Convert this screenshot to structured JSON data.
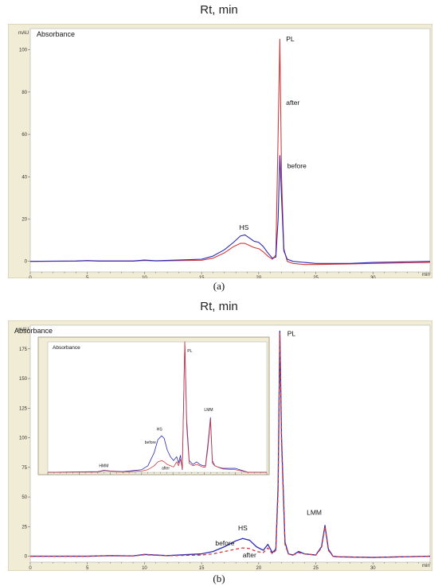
{
  "figure": {
    "title_a": "Rt, min",
    "title_b": "Rt, min",
    "caption_a": "(a)",
    "caption_b": "(b)"
  },
  "colors": {
    "before": "#2a2ab5",
    "after": "#d23a3a",
    "frame_bg": "#f0ecd6",
    "plot_bg": "#ffffff"
  },
  "chart_data": [
    {
      "type": "line",
      "panel": "a",
      "title": "Absorbance",
      "xlabel": "min",
      "ylabel": "mAU",
      "xlim": [
        0,
        35
      ],
      "ylim": [
        -5,
        110
      ],
      "xticks": [
        0,
        5,
        10,
        15,
        20,
        25,
        30
      ],
      "yticks": [
        0,
        20,
        40,
        60,
        80,
        100
      ],
      "grid": false,
      "series": [
        {
          "name": "before",
          "color": "#2a2ab5",
          "x": [
            0,
            4,
            5,
            6,
            9,
            10,
            11,
            15,
            16,
            17,
            17.8,
            18.4,
            18.8,
            19.2,
            19.6,
            20.0,
            20.4,
            20.8,
            21.2,
            21.5,
            21.7,
            21.85,
            22.0,
            22.2,
            22.5,
            23,
            24,
            25,
            28,
            30,
            35
          ],
          "y": [
            0,
            0.2,
            0.4,
            0.2,
            0.2,
            0.6,
            0.3,
            1,
            2.5,
            5.5,
            9,
            12,
            12.5,
            11,
            9.5,
            9,
            7,
            4,
            1.5,
            2,
            20,
            50,
            30,
            5,
            1,
            0,
            -0.5,
            -1,
            -1,
            -0.5,
            0
          ]
        },
        {
          "name": "after",
          "color": "#d23a3a",
          "x": [
            0,
            4,
            5,
            6,
            9,
            10,
            11,
            15,
            16,
            17,
            17.8,
            18.4,
            18.8,
            19.2,
            19.6,
            20.0,
            20.4,
            20.8,
            21.2,
            21.5,
            21.7,
            21.85,
            22.0,
            22.2,
            22.5,
            23,
            24,
            25,
            28,
            30,
            35
          ],
          "y": [
            0,
            0.1,
            0.3,
            0.1,
            0.1,
            0.4,
            0.2,
            0.5,
            1.5,
            4,
            7,
            8.5,
            8.5,
            7.5,
            6.5,
            6,
            4.5,
            2.5,
            1,
            3,
            60,
            105,
            40,
            6,
            0,
            -1,
            -1.5,
            -1.5,
            -1.2,
            -1,
            -0.5
          ]
        }
      ],
      "annotations": [
        {
          "text": "PL",
          "x": 22.4,
          "y": 104
        },
        {
          "text": "after",
          "x": 22.4,
          "y": 74
        },
        {
          "text": "before",
          "x": 22.5,
          "y": 44
        },
        {
          "text": "HS",
          "x": 18.3,
          "y": 15
        }
      ]
    },
    {
      "type": "line",
      "panel": "b",
      "title": "Absorbance",
      "xlabel": "min",
      "ylabel": "mAU",
      "xlim": [
        0,
        35
      ],
      "ylim": [
        -5,
        195
      ],
      "xticks": [
        0,
        5,
        10,
        15,
        20,
        25,
        30
      ],
      "yticks": [
        0,
        25,
        50,
        75,
        100,
        125,
        150,
        175
      ],
      "grid": false,
      "series": [
        {
          "name": "before",
          "color": "#2a2ab5",
          "x": [
            0,
            5,
            7,
            9,
            10,
            12,
            15,
            16,
            17,
            18,
            18.6,
            19.2,
            19.8,
            20.4,
            20.8,
            21.2,
            21.5,
            21.7,
            21.85,
            22.0,
            22.3,
            22.6,
            23,
            23.5,
            24,
            25,
            25.5,
            25.8,
            26.1,
            26.5,
            27,
            30,
            35
          ],
          "y": [
            0,
            0,
            0.5,
            0.3,
            1.5,
            0.5,
            2,
            4,
            8,
            13,
            15,
            13.5,
            8,
            5,
            10,
            3,
            6,
            60,
            190,
            100,
            12,
            2,
            1,
            4,
            2,
            1,
            8,
            26,
            6,
            0,
            -0.5,
            -1,
            0
          ]
        },
        {
          "name": "after",
          "color": "#d23a3a",
          "x": [
            0,
            5,
            7,
            9,
            10,
            12,
            15,
            16,
            17,
            18,
            18.6,
            19.2,
            19.8,
            20.4,
            20.8,
            21.2,
            21.5,
            21.7,
            21.85,
            22.0,
            22.3,
            22.6,
            23,
            23.5,
            24,
            25,
            25.5,
            25.8,
            26.1,
            26.5,
            27,
            30,
            35
          ],
          "y": [
            0,
            0,
            0.4,
            0.2,
            1.2,
            0.4,
            1,
            2,
            4,
            6,
            7,
            6.5,
            4,
            3,
            7,
            2,
            5,
            55,
            188,
            95,
            10,
            2,
            1,
            3,
            2,
            1,
            7,
            25,
            5,
            0,
            -0.5,
            -1,
            0
          ]
        }
      ],
      "annotations": [
        {
          "text": "PL",
          "x": 22.5,
          "y": 186
        },
        {
          "text": "HS",
          "x": 18.2,
          "y": 22
        },
        {
          "text": "LMM",
          "x": 24.2,
          "y": 35
        },
        {
          "text": "before",
          "x": 16.2,
          "y": 9
        },
        {
          "text": "after",
          "x": 18.6,
          "y": -1
        }
      ],
      "inset": {
        "title": "Absorbance",
        "xlim": [
          0,
          35
        ],
        "ylim": [
          0,
          100
        ],
        "series": [
          {
            "name": "before",
            "color": "#2a2ab5",
            "x": [
              0,
              8,
              9,
              10,
              12,
              15,
              16,
              17,
              17.6,
              18.2,
              18.6,
              19.1,
              19.6,
              20.1,
              20.6,
              20.9,
              21.2,
              21.5,
              21.9,
              22.2,
              22.6,
              23.2,
              23.8,
              24.3,
              24.8,
              25.2,
              25.6,
              26.0,
              26.3,
              26.7,
              27.2,
              28,
              30,
              32,
              35
            ],
            "y": [
              0,
              0.5,
              1.5,
              1,
              0.5,
              2,
              5,
              15,
              25,
              28,
              26,
              17,
              12,
              9,
              12,
              7,
              13,
              2,
              100,
              40,
              9,
              6,
              8,
              6,
              5,
              5,
              22,
              42,
              9,
              5,
              4,
              3,
              3,
              0,
              0
            ]
          },
          {
            "name": "after",
            "color": "#d23a3a",
            "x": [
              0,
              8,
              9,
              10,
              12,
              15,
              16,
              17,
              17.6,
              18.2,
              18.6,
              19.1,
              19.6,
              20.1,
              20.6,
              20.9,
              21.2,
              21.5,
              21.9,
              22.2,
              22.6,
              23.2,
              23.8,
              24.3,
              24.8,
              25.2,
              25.6,
              26.0,
              26.3,
              26.7,
              27.2,
              28,
              30,
              32,
              35
            ],
            "y": [
              0,
              0.3,
              1.2,
              0.8,
              0.3,
              1,
              2,
              5,
              8,
              9,
              8,
              6,
              5,
              4,
              8,
              5,
              10,
              3,
              100,
              35,
              7,
              5,
              6,
              5,
              4,
              4,
              19,
              40,
              7,
              5,
              4,
              2.5,
              2,
              0,
              0
            ]
          }
        ],
        "annotations": [
          {
            "text": "HMM",
            "x": 8.2,
            "y": 4
          },
          {
            "text": "HS",
            "x": 17.4,
            "y": 32
          },
          {
            "text": "before",
            "x": 15.5,
            "y": 22
          },
          {
            "text": "after",
            "x": 18.2,
            "y": 2
          },
          {
            "text": "PL",
            "x": 22.3,
            "y": 92
          },
          {
            "text": "LMM",
            "x": 25.0,
            "y": 47
          }
        ]
      }
    }
  ]
}
